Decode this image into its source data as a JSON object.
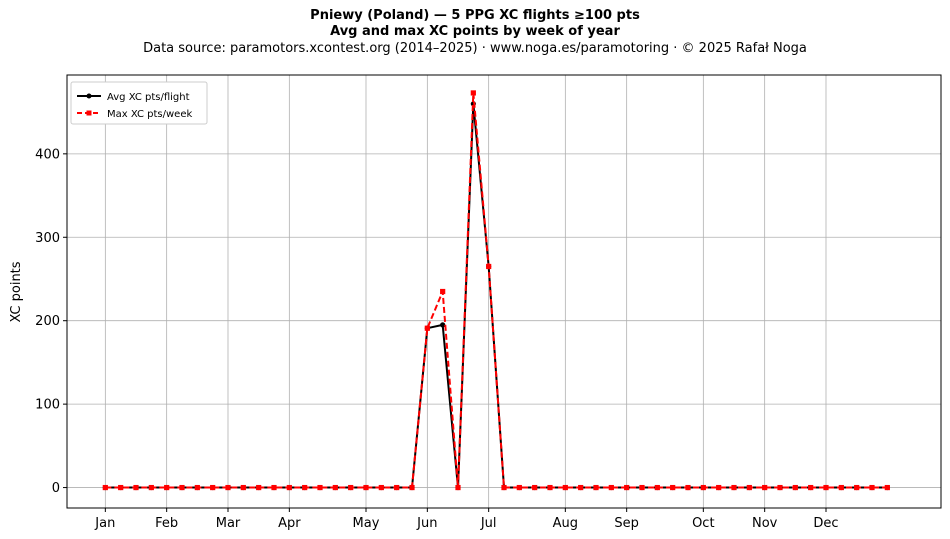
{
  "chart_data": {
    "type": "line",
    "title": "Pniewy (Poland)  —  5 PPG XC flights ≥100 pts",
    "subtitle": "Avg and max XC points by week of year",
    "source_line": "Data source: paramotors.xcontest.org (2014–2025)  ·  www.noga.es/paramotoring  ·  © 2025 Rafał Noga",
    "ylabel": "XC points",
    "xlabel": "",
    "xlim": [
      -2.5,
      54.5
    ],
    "ylim": [
      -24.5,
      494.5
    ],
    "grid": true,
    "legend_position": "upper-left",
    "month_ticks": [
      {
        "label": "Jan",
        "week": 0
      },
      {
        "label": "Feb",
        "week": 4
      },
      {
        "label": "Mar",
        "week": 8
      },
      {
        "label": "Apr",
        "week": 12
      },
      {
        "label": "May",
        "week": 17
      },
      {
        "label": "Jun",
        "week": 21
      },
      {
        "label": "Jul",
        "week": 25
      },
      {
        "label": "Aug",
        "week": 30
      },
      {
        "label": "Sep",
        "week": 34
      },
      {
        "label": "Oct",
        "week": 39
      },
      {
        "label": "Nov",
        "week": 43
      },
      {
        "label": "Dec",
        "week": 47
      }
    ],
    "y_ticks": [
      0,
      100,
      200,
      300,
      400
    ],
    "weeks": [
      0,
      1,
      2,
      3,
      4,
      5,
      6,
      7,
      8,
      9,
      10,
      11,
      12,
      13,
      14,
      15,
      16,
      17,
      18,
      19,
      20,
      21,
      22,
      23,
      24,
      25,
      26,
      27,
      28,
      29,
      30,
      31,
      32,
      33,
      34,
      35,
      36,
      37,
      38,
      39,
      40,
      41,
      42,
      43,
      44,
      45,
      46,
      47,
      48,
      49,
      50,
      51
    ],
    "series": [
      {
        "name": "Avg XC pts/flight",
        "color": "#000000",
        "style": "solid",
        "marker": "circle",
        "values": [
          0,
          0,
          0,
          0,
          0,
          0,
          0,
          0,
          0,
          0,
          0,
          0,
          0,
          0,
          0,
          0,
          0,
          0,
          0,
          0,
          0,
          191,
          195,
          0,
          460,
          265,
          0,
          0,
          0,
          0,
          0,
          0,
          0,
          0,
          0,
          0,
          0,
          0,
          0,
          0,
          0,
          0,
          0,
          0,
          0,
          0,
          0,
          0,
          0,
          0,
          0,
          0
        ]
      },
      {
        "name": "Max XC pts/week",
        "color": "#ff0000",
        "style": "dashed",
        "marker": "square",
        "values": [
          0,
          0,
          0,
          0,
          0,
          0,
          0,
          0,
          0,
          0,
          0,
          0,
          0,
          0,
          0,
          0,
          0,
          0,
          0,
          0,
          0,
          191,
          235,
          0,
          473,
          265,
          0,
          0,
          0,
          0,
          0,
          0,
          0,
          0,
          0,
          0,
          0,
          0,
          0,
          0,
          0,
          0,
          0,
          0,
          0,
          0,
          0,
          0,
          0,
          0,
          0,
          0
        ]
      }
    ]
  }
}
